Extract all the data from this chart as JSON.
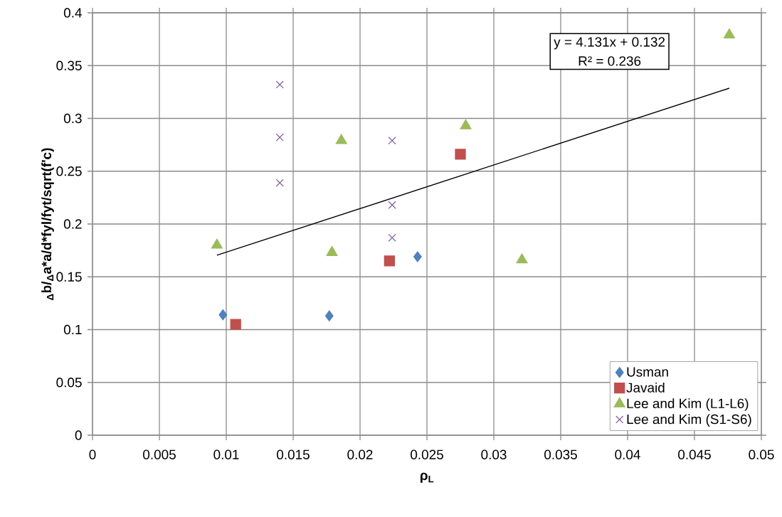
{
  "chart_data": {
    "type": "scatter",
    "xlabel": "ρ$_{L}$",
    "ylabel": "$_{Δ}$b/$_{Δ}$a*a/d*fyl/fyt/sqrt(f'c)",
    "xlim": [
      0,
      0.05
    ],
    "ylim": [
      0,
      0.4
    ],
    "xticks": [
      0,
      0.005,
      0.01,
      0.015,
      0.02,
      0.025,
      0.03,
      0.035,
      0.04,
      0.045,
      0.05
    ],
    "yticks": [
      0,
      0.05,
      0.1,
      0.15,
      0.2,
      0.25,
      0.3,
      0.35,
      0.4
    ],
    "grid": true,
    "legend": "bottom right",
    "annotations": [
      "y = 4.131x + 0.132",
      "R² = 0.236"
    ],
    "series": [
      {
        "name": "Usman",
        "color": "#4f81bd",
        "marker": "diamond",
        "x": [
          0.00975,
          0.0177,
          0.0243
        ],
        "values": [
          0.114,
          0.113,
          0.169
        ]
      },
      {
        "name": "Javaid",
        "color": "#c0504d",
        "marker": "square",
        "x": [
          0.0107,
          0.0222,
          0.0275
        ],
        "values": [
          0.105,
          0.165,
          0.266
        ]
      },
      {
        "name": "Lee and Kim (L1-L6)",
        "color": "#9bbb59",
        "marker": "triangle",
        "x": [
          0.0093,
          0.0179,
          0.0186,
          0.0279,
          0.0321,
          0.0476
        ],
        "values": [
          0.18,
          0.173,
          0.279,
          0.293,
          0.166,
          0.379
        ]
      },
      {
        "name": "Lee and Kim (S1-S6)",
        "color": "#8064a2",
        "marker": "cross",
        "x": [
          0.014,
          0.014,
          0.014,
          0.0224,
          0.0224,
          0.0224
        ],
        "values": [
          0.332,
          0.282,
          0.239,
          0.279,
          0.218,
          0.187
        ]
      },
      {
        "type": "line",
        "color": "#000000",
        "marker": "none",
        "x": [
          0.0093,
          0.0476
        ],
        "values": [
          0.1704,
          0.3286
        ]
      }
    ]
  }
}
